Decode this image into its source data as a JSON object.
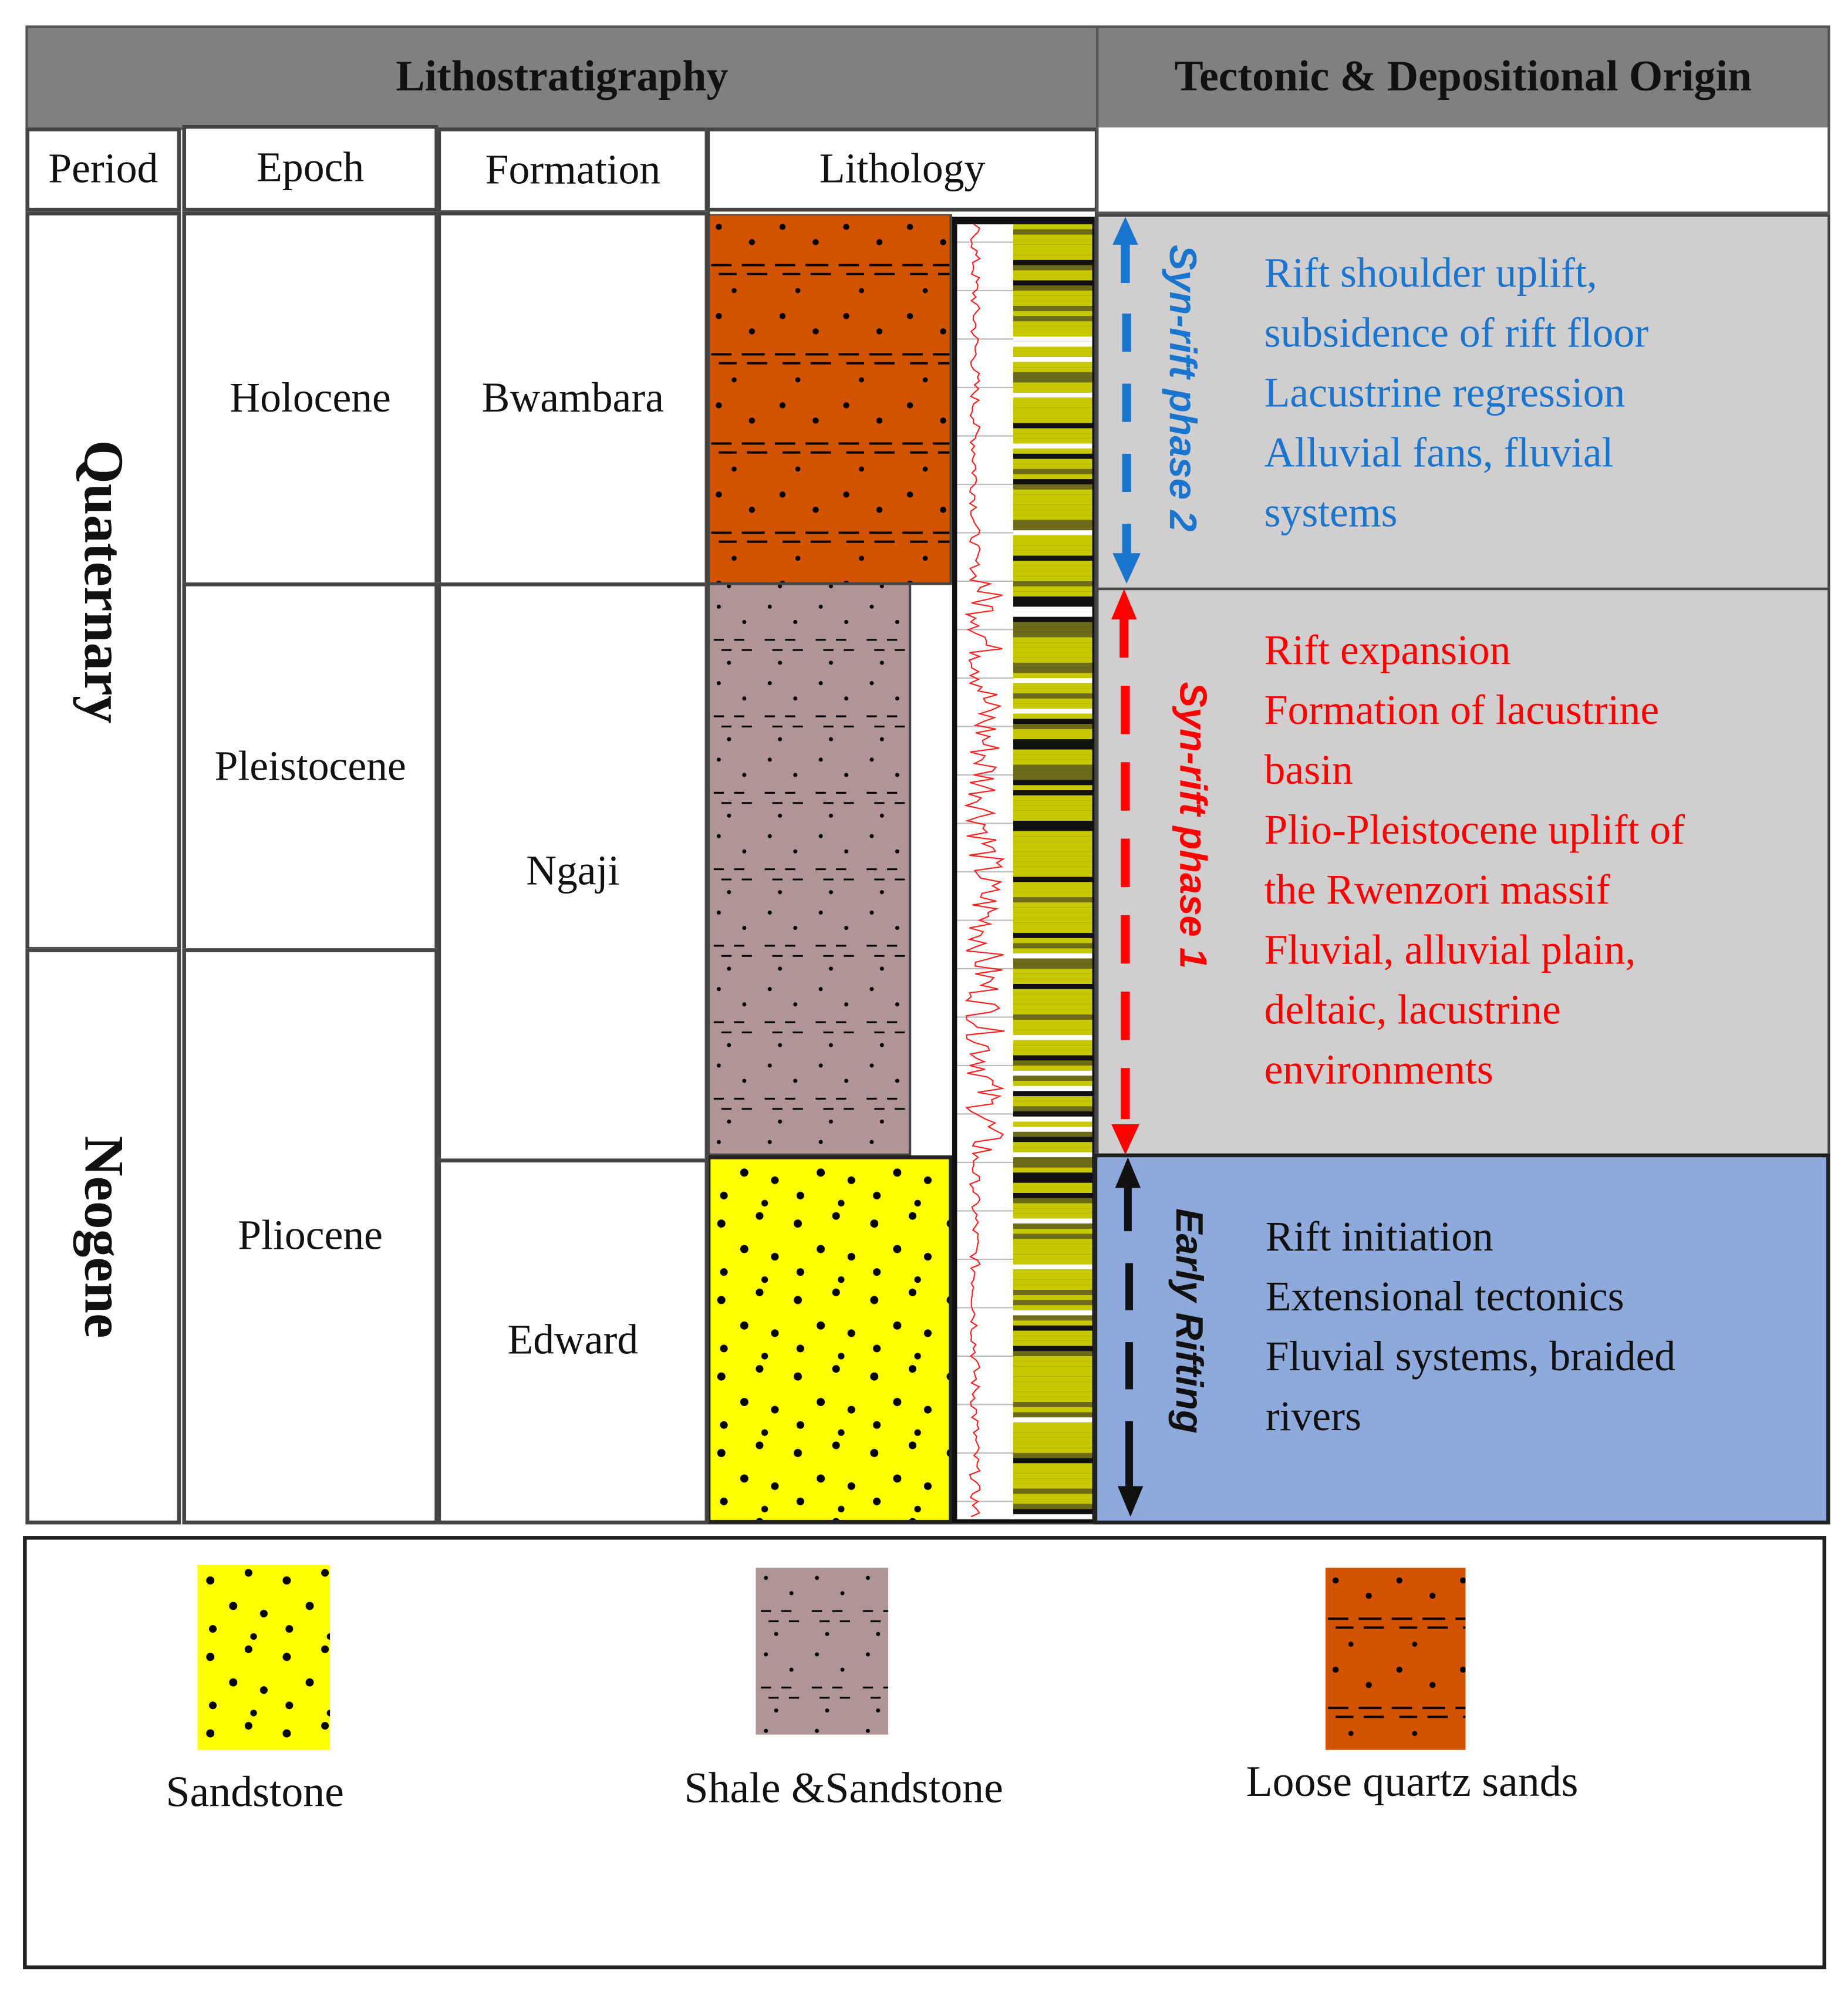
{
  "header": {
    "lithostratigraphy": "Lithostratigraphy",
    "tectonic": "Tectonic & Depositional Origin"
  },
  "columns": {
    "period": "Period",
    "epoch": "Epoch",
    "formation": "Formation",
    "lithology": "Lithology"
  },
  "periods": [
    "Quaternary",
    "Neogene"
  ],
  "epochs": [
    "Holocene",
    "Pleistocene",
    "Pliocene"
  ],
  "formations": [
    "Bwambara",
    "Ngaji",
    "Edward"
  ],
  "phases": [
    {
      "label": "Syn-rift phase 2",
      "color": "#1a75cf",
      "lines": [
        "Rift shoulder uplift,",
        "subsidence of rift floor",
        "Lacustrine regression",
        "Alluvial fans, fluvial",
        "systems"
      ]
    },
    {
      "label": "Syn-rift phase 1",
      "color": "#ff0000",
      "lines": [
        "Rift expansion",
        "Formation of lacustrine",
        "basin",
        "Plio-Pleistocene uplift of",
        "the Rwenzori massif",
        "Fluvial, alluvial plain,",
        "deltaic, lacustrine",
        "environments"
      ]
    },
    {
      "label": "Early Rifting",
      "color": "#111111",
      "lines": [
        "Rift initiation",
        "Extensional tectonics",
        "Fluvial systems, braided",
        "rivers"
      ]
    }
  ],
  "legend": [
    {
      "label": "Sandstone",
      "color": "#ffff00"
    },
    {
      "label": "Shale &Sandstone",
      "color": "#b09496"
    },
    {
      "label": "Loose quartz sands",
      "color": "#d35400"
    }
  ],
  "colors": {
    "header": "#808080",
    "panel_gray": "#d0cece",
    "panel_blue": "#8eaadc"
  }
}
